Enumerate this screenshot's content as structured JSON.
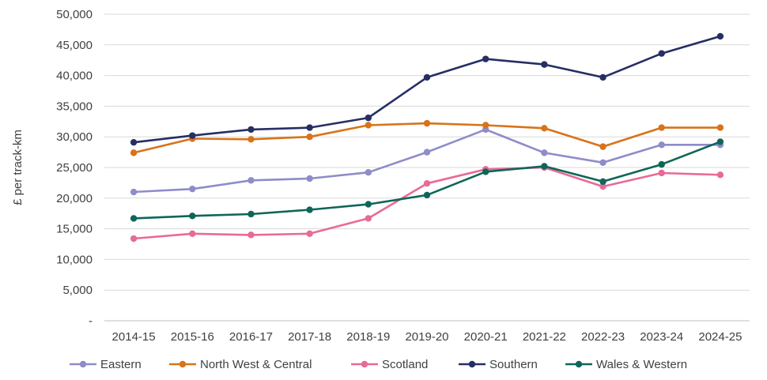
{
  "chart_data": {
    "type": "line",
    "title": "",
    "xlabel": "",
    "ylabel": "£ per track-km",
    "ylim": [
      0,
      50000
    ],
    "grid": true,
    "legend_position": "bottom",
    "x": [
      "2014-15",
      "2015-16",
      "2016-17",
      "2017-18",
      "2018-19",
      "2019-20",
      "2020-21",
      "2021-22",
      "2022-23",
      "2023-24",
      "2024-25"
    ],
    "y_ticks": [
      {
        "value": 0,
        "label": "-"
      },
      {
        "value": 5000,
        "label": "5,000"
      },
      {
        "value": 10000,
        "label": "10,000"
      },
      {
        "value": 15000,
        "label": "15,000"
      },
      {
        "value": 20000,
        "label": "20,000"
      },
      {
        "value": 25000,
        "label": "25,000"
      },
      {
        "value": 30000,
        "label": "30,000"
      },
      {
        "value": 35000,
        "label": "35,000"
      },
      {
        "value": 40000,
        "label": "40,000"
      },
      {
        "value": 45000,
        "label": "45,000"
      },
      {
        "value": 50000,
        "label": "50,000"
      }
    ],
    "series": [
      {
        "name": "Eastern",
        "color": "#8e8cc9",
        "values": [
          21000,
          21500,
          22900,
          23200,
          24200,
          27500,
          31200,
          27400,
          25800,
          28700,
          28700
        ]
      },
      {
        "name": "North West & Central",
        "color": "#d8731a",
        "values": [
          27400,
          29700,
          29600,
          30000,
          31900,
          32200,
          31900,
          31400,
          28400,
          31500,
          31500
        ]
      },
      {
        "name": "Scotland",
        "color": "#e86a97",
        "values": [
          13400,
          14200,
          14000,
          14200,
          16700,
          22400,
          24700,
          25000,
          21900,
          24100,
          23800
        ]
      },
      {
        "name": "Southern",
        "color": "#262e64",
        "values": [
          29100,
          30200,
          31200,
          31500,
          33100,
          39700,
          42700,
          41800,
          39700,
          43600,
          46400
        ]
      },
      {
        "name": "Wales & Western",
        "color": "#0e6659",
        "values": [
          16700,
          17100,
          17400,
          18100,
          19000,
          20500,
          24300,
          25200,
          22700,
          25500,
          29200
        ]
      }
    ]
  }
}
